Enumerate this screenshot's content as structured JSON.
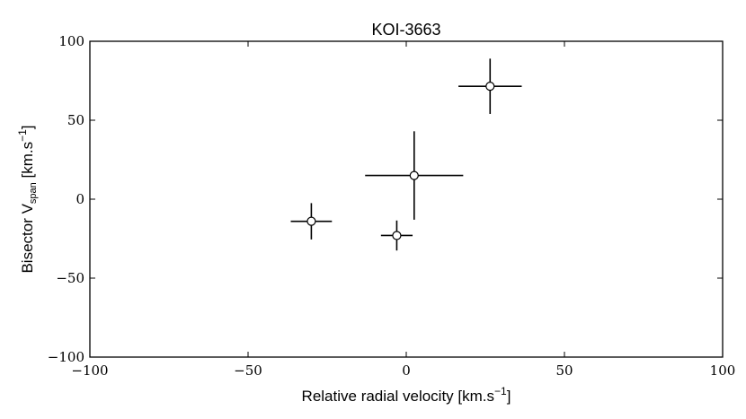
{
  "chart_data": {
    "type": "scatter",
    "title": "KOI-3663",
    "xlabel_main": "Relative radial velocity [km.s",
    "xlabel_sup": "−1",
    "xlabel_end": "]",
    "ylabel_main": "Bisector V",
    "ylabel_sub": "span",
    "ylabel_rest": " [km.s",
    "ylabel_sup": "−1",
    "ylabel_end": "]",
    "xlim": [
      -100,
      100
    ],
    "ylim": [
      -100,
      100
    ],
    "xticks": [
      -100,
      -50,
      0,
      50,
      100
    ],
    "yticks": [
      -100,
      -50,
      0,
      50,
      100
    ],
    "xtick_labels": [
      "−100",
      "−50",
      "0",
      "50",
      "100"
    ],
    "ytick_labels": [
      "−100",
      "−50",
      "0",
      "50",
      "100"
    ],
    "grid": false,
    "points": [
      {
        "x": -30,
        "y": -14,
        "xerr": 6.5,
        "yerr": 11.5
      },
      {
        "x": -3,
        "y": -23,
        "xerr": 5,
        "yerr": 9.5
      },
      {
        "x": 2.5,
        "y": 15,
        "xerr": 15.5,
        "yerr": 28
      },
      {
        "x": 26.5,
        "y": 71.5,
        "xerr": 10,
        "yerr": 17.5
      }
    ]
  }
}
